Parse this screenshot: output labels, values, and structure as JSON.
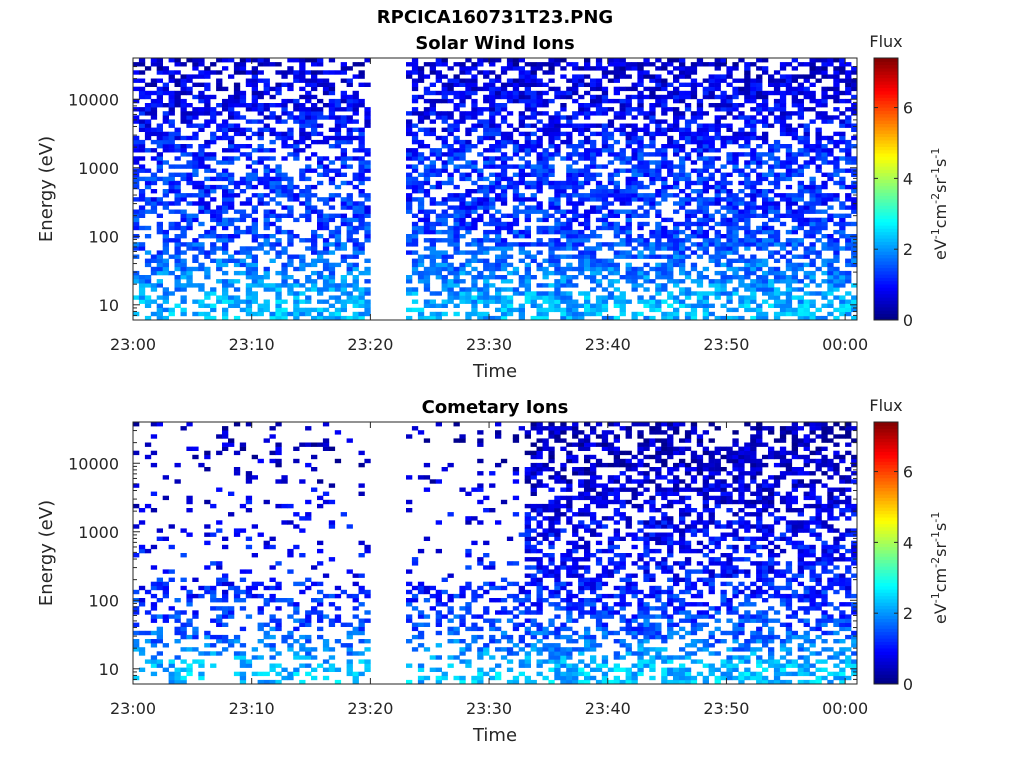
{
  "figure_title": "RPCICA160731T23.PNG",
  "colorbar": {
    "label": "Flux",
    "unit_text": "eV-1cm-2sr-1s-1",
    "ticks": [
      0,
      2,
      4,
      6
    ],
    "range": [
      0,
      7.4
    ],
    "colormap": "jet"
  },
  "chart_data": [
    {
      "type": "heatmap",
      "title": "Solar Wind Ions",
      "xlabel": "Time",
      "ylabel": "Energy (eV)",
      "x_ticks": [
        "23:00",
        "23:10",
        "23:20",
        "23:30",
        "23:40",
        "23:50",
        "00:00"
      ],
      "x_range": [
        "23:00",
        "00:01"
      ],
      "y_scale": "log",
      "y_ticks": [
        10,
        100,
        1000,
        10000
      ],
      "y_range": [
        6,
        40000
      ],
      "color_label": "Flux",
      "data_gaps": [
        [
          "23:20",
          "23:23"
        ]
      ],
      "flux_profile": {
        "energy_eV": [
          10,
          30,
          100,
          300,
          1000,
          3000,
          10000,
          30000
        ],
        "typical_flux": [
          2.2,
          1.8,
          1.4,
          1.2,
          1.3,
          1.0,
          0.8,
          0.6
        ]
      }
    },
    {
      "type": "heatmap",
      "title": "Cometary Ions",
      "xlabel": "Time",
      "ylabel": "Energy (eV)",
      "x_ticks": [
        "23:00",
        "23:10",
        "23:20",
        "23:30",
        "23:40",
        "23:50",
        "00:00"
      ],
      "x_range": [
        "23:00",
        "00:01"
      ],
      "y_scale": "log",
      "y_ticks": [
        10,
        100,
        1000,
        10000
      ],
      "y_range": [
        6,
        40000
      ],
      "color_label": "Flux",
      "data_gaps": [
        [
          "23:20",
          "23:23"
        ]
      ],
      "flux_profile": {
        "energy_eV": [
          10,
          30,
          100,
          300,
          1000,
          3000,
          10000,
          30000
        ],
        "typical_flux": [
          2.3,
          1.6,
          1.2,
          1.0,
          0.9,
          0.7,
          0.5,
          0.4
        ]
      }
    }
  ]
}
